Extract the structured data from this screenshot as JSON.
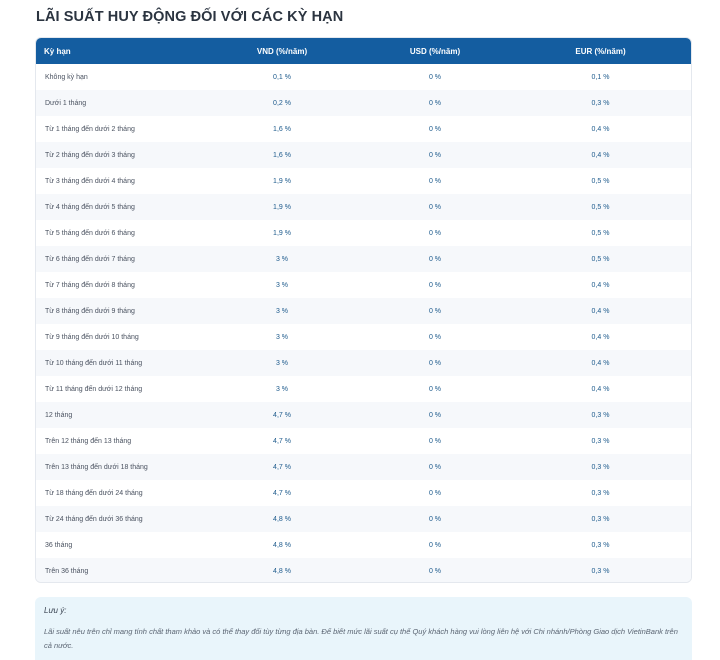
{
  "title": "LÃI SUẤT HUY ĐỘNG ĐỐI VỚI CÁC KỲ HẠN",
  "table": {
    "headers": [
      "Kỳ hạn",
      "VND (%/năm)",
      "USD (%/năm)",
      "EUR (%/năm)"
    ],
    "rows": [
      [
        "Không kỳ hạn",
        "0,1 %",
        "0 %",
        "0,1 %"
      ],
      [
        "Dưới 1 tháng",
        "0,2 %",
        "0 %",
        "0,3 %"
      ],
      [
        "Từ 1 tháng đến dưới 2 tháng",
        "1,6 %",
        "0 %",
        "0,4 %"
      ],
      [
        "Từ 2 tháng đến dưới 3 tháng",
        "1,6 %",
        "0 %",
        "0,4 %"
      ],
      [
        "Từ 3 tháng đến dưới 4 tháng",
        "1,9 %",
        "0 %",
        "0,5 %"
      ],
      [
        "Từ 4 tháng đến dưới 5 tháng",
        "1,9 %",
        "0 %",
        "0,5 %"
      ],
      [
        "Từ 5 tháng đến dưới 6 tháng",
        "1,9 %",
        "0 %",
        "0,5 %"
      ],
      [
        "Từ 6 tháng đến dưới 7 tháng",
        "3 %",
        "0 %",
        "0,5 %"
      ],
      [
        "Từ 7 tháng đến dưới 8 tháng",
        "3 %",
        "0 %",
        "0,4 %"
      ],
      [
        "Từ 8 tháng đến dưới 9 tháng",
        "3 %",
        "0 %",
        "0,4 %"
      ],
      [
        "Từ 9 tháng đến dưới 10 tháng",
        "3 %",
        "0 %",
        "0,4 %"
      ],
      [
        "Từ 10 tháng đến dưới 11 tháng",
        "3 %",
        "0 %",
        "0,4 %"
      ],
      [
        "Từ 11 tháng đến dưới 12 tháng",
        "3 %",
        "0 %",
        "0,4 %"
      ],
      [
        "12 tháng",
        "4,7 %",
        "0 %",
        "0,3 %"
      ],
      [
        "Trên 12 tháng đến 13 tháng",
        "4,7 %",
        "0 %",
        "0,3 %"
      ],
      [
        "Trên 13 tháng đến dưới 18 tháng",
        "4,7 %",
        "0 %",
        "0,3 %"
      ],
      [
        "Từ 18 tháng đến dưới 24 tháng",
        "4,7 %",
        "0 %",
        "0,3 %"
      ],
      [
        "Từ 24 tháng đến dưới 36 tháng",
        "4,8 %",
        "0 %",
        "0,3 %"
      ],
      [
        "36 tháng",
        "4,8 %",
        "0 %",
        "0,3 %"
      ],
      [
        "Trên 36 tháng",
        "4,8 %",
        "0 %",
        "0,3 %"
      ]
    ]
  },
  "note": {
    "title": "Lưu ý:",
    "text": "Lãi suất nêu trên chỉ mang tính chất tham khảo và có thể thay đổi tùy từng địa bàn. Để biết mức lãi suất cụ thể Quý khách hàng vui lòng liên hệ với Chi nhánh/Phòng Giao dịch VietinBank trên cả nước."
  },
  "colors": {
    "header_bg": "#145da0",
    "note_bg": "#e9f5fb",
    "value_text": "#1d5a8c"
  }
}
